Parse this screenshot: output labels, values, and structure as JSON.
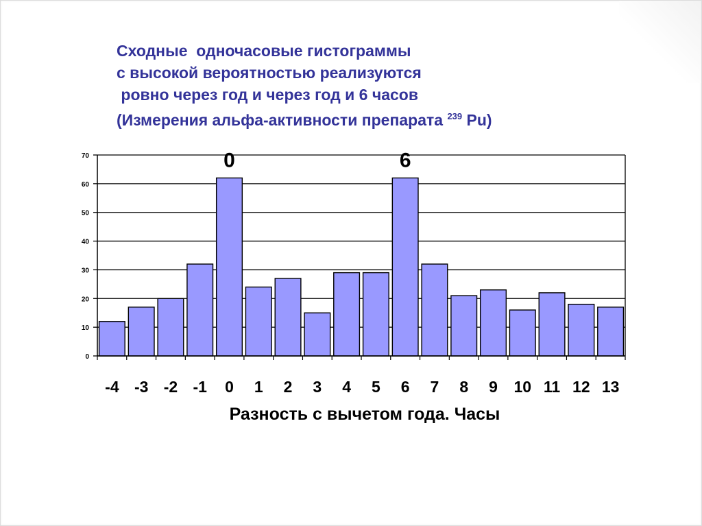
{
  "title": {
    "line1": "Сходные  одночасовые гистограммы",
    "line2": "с высокой вероятностью реализуются",
    "line3": " ровно через год и через год и 6 часов",
    "line4_main": "(Измерения альфа-активности препарата ",
    "line4_sup": "239",
    "line4_end": " Pu)"
  },
  "chart_data": {
    "type": "bar",
    "categories": [
      "-4",
      "-3",
      "-2",
      "-1",
      "0",
      "1",
      "2",
      "3",
      "4",
      "5",
      "6",
      "7",
      "8",
      "9",
      "10",
      "11",
      "12",
      "13"
    ],
    "values": [
      12,
      17,
      20,
      32,
      62,
      24,
      27,
      15,
      29,
      29,
      62,
      32,
      21,
      23,
      16,
      22,
      18,
      17
    ],
    "xlabel": "Разность с вычетом года. Часы",
    "ylabel": "",
    "ylim": [
      0,
      70
    ],
    "yticks": [
      0,
      10,
      20,
      30,
      40,
      50,
      60,
      70
    ],
    "grid": true,
    "annotations": [
      {
        "category": "0",
        "text": "0"
      },
      {
        "category": "6",
        "text": "6"
      }
    ],
    "colors": {
      "bar_fill": "#9999ff",
      "bar_stroke": "#000000",
      "grid": "#000000",
      "title": "#333399"
    }
  }
}
